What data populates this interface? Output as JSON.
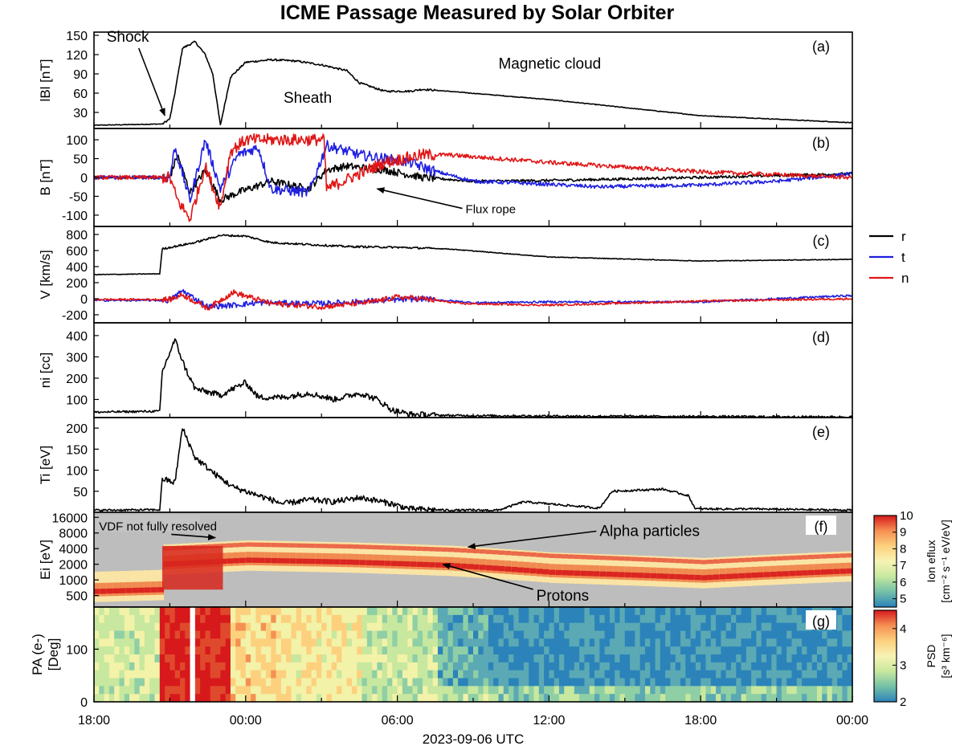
{
  "chart_data": {
    "type": "line",
    "title": "ICME Passage Measured by Solar Orbiter",
    "xlabel": "2023-09-06 UTC",
    "x_range_hours": [
      -6,
      24
    ],
    "x_ticks": [
      {
        "h": -6,
        "label": "18:00"
      },
      {
        "h": 0,
        "label": "00:00"
      },
      {
        "h": 6,
        "label": "06:00"
      },
      {
        "h": 12,
        "label": "12:00"
      },
      {
        "h": 18,
        "label": "18:00"
      },
      {
        "h": 24,
        "label": "00:00"
      }
    ],
    "legend": {
      "position": "right",
      "entries": [
        {
          "name": "r",
          "color": "#000000"
        },
        {
          "name": "t",
          "color": "#1f1fe0"
        },
        {
          "name": "n",
          "color": "#e01515"
        }
      ]
    },
    "panels": [
      {
        "id": "a",
        "label": "(a)",
        "ylabel": "lBl [nT]",
        "ylim": [
          5,
          155
        ],
        "yticks": [
          30,
          60,
          90,
          120,
          150
        ],
        "series": [
          {
            "key": "r",
            "noise": 1.5,
            "points": [
              [
                -6,
                10
              ],
              [
                -3.3,
                12
              ],
              [
                -3.0,
                20
              ],
              [
                -2.8,
                60
              ],
              [
                -2.5,
                130
              ],
              [
                -2.0,
                140
              ],
              [
                -1.6,
                120
              ],
              [
                -1.3,
                90
              ],
              [
                -1.0,
                10
              ],
              [
                -0.6,
                85
              ],
              [
                0,
                108
              ],
              [
                1.0,
                112
              ],
              [
                2.0,
                110
              ],
              [
                3.0,
                104
              ],
              [
                4.0,
                95
              ],
              [
                4.5,
                76
              ],
              [
                5.5,
                63
              ],
              [
                6.5,
                63
              ],
              [
                7.0,
                66
              ],
              [
                8.0,
                63
              ],
              [
                12,
                50
              ],
              [
                18,
                25
              ],
              [
                24,
                14
              ]
            ]
          }
        ],
        "annotations": [
          {
            "text": "Shock",
            "at": [
              -5.5,
              140
            ],
            "arrow_to": [
              -3.2,
              25
            ]
          },
          {
            "text": "Sheath",
            "at": [
              1.5,
              45
            ]
          },
          {
            "text": "Magnetic cloud",
            "at": [
              10.0,
              98
            ]
          }
        ]
      },
      {
        "id": "b",
        "label": "(b)",
        "ylabel": "B [nT]",
        "ylim": [
          -130,
          130
        ],
        "yticks": [
          -100,
          -50,
          0,
          50,
          100
        ],
        "series": [
          {
            "key": "r",
            "noise": 10,
            "points": [
              [
                -6,
                0
              ],
              [
                -3.0,
                0
              ],
              [
                -2.7,
                60
              ],
              [
                -2.2,
                -40
              ],
              [
                -1.6,
                20
              ],
              [
                -1.0,
                -60
              ],
              [
                -0.3,
                -40
              ],
              [
                1.0,
                -10
              ],
              [
                2.5,
                -30
              ],
              [
                3.2,
                20
              ],
              [
                4.0,
                30
              ],
              [
                5.5,
                20
              ],
              [
                7.0,
                0
              ],
              [
                9.0,
                -10
              ],
              [
                12,
                -8
              ],
              [
                18,
                0
              ],
              [
                24,
                10
              ]
            ]
          },
          {
            "key": "t",
            "noise": 14,
            "points": [
              [
                -6,
                0
              ],
              [
                -3.0,
                0
              ],
              [
                -2.8,
                80
              ],
              [
                -2.2,
                -60
              ],
              [
                -1.6,
                100
              ],
              [
                -1.0,
                -30
              ],
              [
                -0.3,
                60
              ],
              [
                0.5,
                80
              ],
              [
                1.0,
                -30
              ],
              [
                2.5,
                -40
              ],
              [
                3.2,
                85
              ],
              [
                4.5,
                60
              ],
              [
                6.5,
                40
              ],
              [
                7.3,
                20
              ],
              [
                9.0,
                -10
              ],
              [
                11.0,
                -15
              ],
              [
                14.0,
                -25
              ],
              [
                18.0,
                -20
              ],
              [
                21.0,
                -10
              ],
              [
                24,
                10
              ]
            ]
          },
          {
            "key": "n",
            "noise": 16,
            "points": [
              [
                -6,
                0
              ],
              [
                -3.0,
                0
              ],
              [
                -2.7,
                -60
              ],
              [
                -2.2,
                -110
              ],
              [
                -1.6,
                30
              ],
              [
                -1.0,
                -80
              ],
              [
                -0.6,
                70
              ],
              [
                0,
                100
              ],
              [
                2.0,
                100
              ],
              [
                3.1,
                100
              ],
              [
                3.2,
                -30
              ],
              [
                4.5,
                10
              ],
              [
                5.5,
                40
              ],
              [
                7.0,
                60
              ],
              [
                8.0,
                60
              ],
              [
                12,
                40
              ],
              [
                18,
                15
              ],
              [
                24,
                0
              ]
            ]
          }
        ],
        "annotations": [
          {
            "text": "Flux rope",
            "at": [
              8.7,
              -95
            ],
            "arrow_to": [
              5.2,
              -30
            ]
          }
        ]
      },
      {
        "id": "c",
        "label": "(c)",
        "ylabel": "V [km/s]",
        "ylim": [
          -300,
          900
        ],
        "yticks": [
          -200,
          0,
          200,
          400,
          600,
          800
        ],
        "series": [
          {
            "key": "r",
            "noise": 12,
            "points": [
              [
                -6,
                300
              ],
              [
                -3.4,
                310
              ],
              [
                -3.3,
                620
              ],
              [
                -2.0,
                700
              ],
              [
                -1.0,
                790
              ],
              [
                0,
                780
              ],
              [
                1.0,
                700
              ],
              [
                4.0,
                650
              ],
              [
                6.0,
                640
              ],
              [
                8.0,
                620
              ],
              [
                12,
                520
              ],
              [
                18,
                470
              ],
              [
                24,
                490
              ]
            ]
          },
          {
            "key": "t",
            "noise": 35,
            "points": [
              [
                -6,
                -20
              ],
              [
                -3,
                -20
              ],
              [
                -2.5,
                100
              ],
              [
                -1.5,
                -100
              ],
              [
                -0.5,
                -80
              ],
              [
                0.5,
                -50
              ],
              [
                3.0,
                -60
              ],
              [
                5.5,
                -20
              ],
              [
                7.0,
                0
              ],
              [
                9.0,
                -50
              ],
              [
                12,
                -40
              ],
              [
                18,
                -40
              ],
              [
                24,
                40
              ]
            ]
          },
          {
            "key": "n",
            "noise": 35,
            "points": [
              [
                -6,
                -10
              ],
              [
                -3,
                -10
              ],
              [
                -2.5,
                50
              ],
              [
                -1.5,
                -120
              ],
              [
                -0.5,
                80
              ],
              [
                1.0,
                -60
              ],
              [
                3.0,
                -100
              ],
              [
                5.0,
                -40
              ],
              [
                6.0,
                20
              ],
              [
                7.0,
                0
              ],
              [
                8.5,
                -60
              ],
              [
                12,
                -80
              ],
              [
                18,
                -30
              ],
              [
                24,
                0
              ]
            ]
          }
        ]
      },
      {
        "id": "d",
        "label": "(d)",
        "ylabel": "ni [cc]",
        "ylim": [
          15,
          460
        ],
        "yticks": [
          100,
          200,
          300,
          400
        ],
        "series": [
          {
            "key": "r",
            "noise": 14,
            "points": [
              [
                -6,
                40
              ],
              [
                -3.4,
                45
              ],
              [
                -3.3,
                230
              ],
              [
                -2.8,
                380
              ],
              [
                -2.4,
                250
              ],
              [
                -2.0,
                150
              ],
              [
                -1.0,
                120
              ],
              [
                0,
                180
              ],
              [
                0.5,
                110
              ],
              [
                1.5,
                110
              ],
              [
                2.5,
                130
              ],
              [
                3.5,
                100
              ],
              [
                4.5,
                130
              ],
              [
                5.2,
                100
              ],
              [
                5.8,
                50
              ],
              [
                6.5,
                30
              ],
              [
                8.0,
                25
              ],
              [
                12,
                22
              ],
              [
                18,
                20
              ],
              [
                24,
                18
              ]
            ]
          }
        ]
      },
      {
        "id": "e",
        "label": "(e)",
        "ylabel": "Ti [eV]",
        "ylim": [
          0,
          225
        ],
        "yticks": [
          50,
          100,
          150,
          200
        ],
        "series": [
          {
            "key": "r",
            "noise": 7,
            "points": [
              [
                -6,
                5
              ],
              [
                -3.4,
                6
              ],
              [
                -3.3,
                80
              ],
              [
                -2.8,
                70
              ],
              [
                -2.5,
                200
              ],
              [
                -2.0,
                130
              ],
              [
                -1.2,
                90
              ],
              [
                -0.5,
                60
              ],
              [
                0.5,
                40
              ],
              [
                1.5,
                20
              ],
              [
                2.5,
                30
              ],
              [
                3.5,
                25
              ],
              [
                4.5,
                35
              ],
              [
                5.0,
                30
              ],
              [
                5.8,
                20
              ],
              [
                6.5,
                8
              ],
              [
                8.0,
                5
              ],
              [
                10.0,
                5
              ],
              [
                11.0,
                25
              ],
              [
                13.0,
                15
              ],
              [
                14.0,
                10
              ],
              [
                14.5,
                50
              ],
              [
                16.5,
                55
              ],
              [
                17.5,
                40
              ],
              [
                17.8,
                8
              ],
              [
                20.0,
                8
              ],
              [
                24,
                5
              ]
            ]
          }
        ]
      },
      {
        "id": "f",
        "label": "(f)",
        "type": "heatmap",
        "ylabel": "Ei [eV]",
        "yscale": "log",
        "ylim": [
          300,
          20000
        ],
        "yticks": [
          500,
          1000,
          2000,
          4000,
          8000,
          16000
        ],
        "colorbar": {
          "label_line1": "Ion eflux",
          "label_line2": "[cm⁻² s⁻¹ eV/eV]",
          "range": [
            4.5,
            10
          ],
          "ticks": [
            5,
            6,
            7,
            8,
            9,
            10
          ]
        },
        "proton_band": [
          [
            -6,
            600
          ],
          [
            -3.4,
            650
          ],
          [
            -3.3,
            2000
          ],
          [
            0,
            2400
          ],
          [
            4.0,
            2200
          ],
          [
            8.0,
            1900
          ],
          [
            12,
            1400
          ],
          [
            18,
            1100
          ],
          [
            24,
            1500
          ]
        ],
        "alpha_band": [
          [
            -3.3,
            4000
          ],
          [
            0,
            4800
          ],
          [
            4.0,
            4400
          ],
          [
            8.0,
            3800
          ],
          [
            12,
            2900
          ],
          [
            18,
            2200
          ],
          [
            24,
            3000
          ]
        ],
        "annotations": [
          {
            "text": "VDF not fully resolved",
            "at": [
              -5.8,
              9000
            ],
            "arrow_to": [
              -1.2,
              6500
            ]
          },
          {
            "text": "Alpha particles",
            "at": [
              14.0,
              7000
            ],
            "arrow_to": [
              8.8,
              4300
            ]
          },
          {
            "text": "Protons",
            "at": [
              11.5,
              400
            ],
            "arrow_to": [
              7.8,
              2000
            ]
          }
        ]
      },
      {
        "id": "g",
        "label": "(g)",
        "type": "heatmap",
        "ylabel_line1": "PA (e-)",
        "ylabel_line2": "[Deg]",
        "ylim": [
          0,
          180
        ],
        "yticks": [
          0,
          100
        ],
        "colorbar": {
          "label_line1": "PSD",
          "label_line2": "[s³ km⁻⁶]",
          "range": [
            2,
            4.5
          ],
          "ticks": [
            2,
            3,
            4
          ]
        }
      }
    ]
  }
}
